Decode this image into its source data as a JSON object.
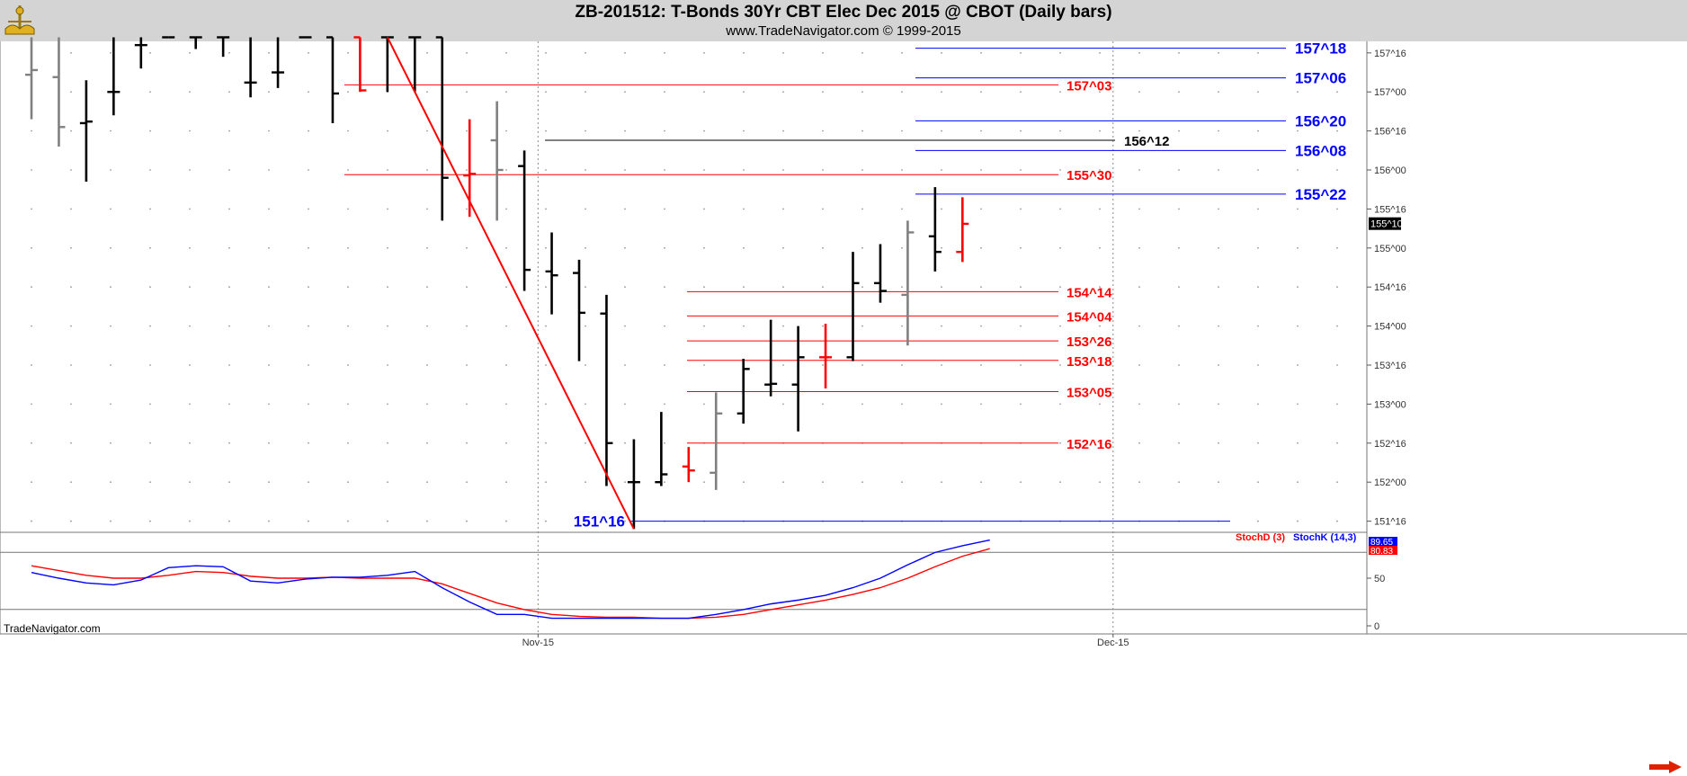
{
  "header": {
    "title": "ZB-201512:  T-Bonds 30Yr CBT Elec Dec 2015 @ CBOT  (Daily bars)",
    "subtitle": "www.TradeNavigator.com © 1999-2015"
  },
  "watermark": "TradeNavigator.com",
  "colors": {
    "up_bar": "#000000",
    "down_bar": "#ff0000",
    "inside_bar": "#808080",
    "red_level": "#ff0000",
    "blue_level": "#0000ff",
    "black_level": "#000000",
    "stoch_d": "#ff0000",
    "stoch_k": "#0000ff",
    "header_bg": "#d4d4d4"
  },
  "chart_data": [
    {
      "type": "bar",
      "subtype": "ohlc",
      "title": "ZB-201512:  T-Bonds 30Yr CBT Elec Dec 2015 @ CBOT  (Daily bars)",
      "x_tick_labels": [
        "Nov-15",
        "Dec-15"
      ],
      "x_tick_bar_positions": [
        18.5,
        39.5
      ],
      "y_tick_labels": [
        "157^16",
        "157^00",
        "156^16",
        "156^00",
        "155^16",
        "155^00",
        "154^16",
        "154^00",
        "153^16",
        "153^00",
        "152^16",
        "152^00",
        "151^16"
      ],
      "y_unit": "32nds",
      "ylim": [
        151.4,
        157.7
      ],
      "last_price_label": "155^10",
      "last_price": 155.3125,
      "bars": [
        {
          "o": 157.22,
          "h": 157.7,
          "l": 156.65,
          "c": 157.28,
          "color": "inside"
        },
        {
          "o": 157.19,
          "h": 157.7,
          "l": 156.3,
          "c": 156.55,
          "color": "inside"
        },
        {
          "o": 156.6,
          "h": 157.15,
          "l": 155.85,
          "c": 156.62,
          "color": "up"
        },
        {
          "o": 157.0,
          "h": 157.7,
          "l": 156.7,
          "c": 157.0,
          "color": "up"
        },
        {
          "o": 157.6,
          "h": 157.7,
          "l": 157.3,
          "c": 157.6,
          "color": "up"
        },
        {
          "o": 157.7,
          "h": 157.7,
          "l": 157.7,
          "c": 157.7,
          "color": "up"
        },
        {
          "o": 157.7,
          "h": 157.7,
          "l": 157.55,
          "c": 157.7,
          "color": "up"
        },
        {
          "o": 157.7,
          "h": 157.7,
          "l": 157.45,
          "c": 157.7,
          "color": "up"
        },
        {
          "o": 157.12,
          "h": 157.7,
          "l": 156.93,
          "c": 157.12,
          "color": "up"
        },
        {
          "o": 157.25,
          "h": 157.7,
          "l": 157.05,
          "c": 157.25,
          "color": "up"
        },
        {
          "o": 157.7,
          "h": 157.7,
          "l": 157.7,
          "c": 157.7,
          "color": "up"
        },
        {
          "o": 157.7,
          "h": 157.7,
          "l": 156.6,
          "c": 156.98,
          "color": "up"
        },
        {
          "o": 157.7,
          "h": 157.7,
          "l": 157.0,
          "c": 157.02,
          "color": "down"
        },
        {
          "o": 157.7,
          "h": 157.7,
          "l": 157.0,
          "c": 157.7,
          "color": "up"
        },
        {
          "o": 157.7,
          "h": 157.7,
          "l": 157.0,
          "c": 157.7,
          "color": "up"
        },
        {
          "o": 157.7,
          "h": 157.7,
          "l": 155.35,
          "c": 155.9,
          "color": "up"
        },
        {
          "o": 155.93,
          "h": 156.65,
          "l": 155.4,
          "c": 155.95,
          "color": "down"
        },
        {
          "o": 156.38,
          "h": 156.88,
          "l": 155.35,
          "c": 156.0,
          "color": "inside"
        },
        {
          "o": 156.05,
          "h": 156.25,
          "l": 154.45,
          "c": 154.72,
          "color": "up"
        },
        {
          "o": 154.7,
          "h": 155.2,
          "l": 154.15,
          "c": 154.65,
          "color": "up"
        },
        {
          "o": 154.68,
          "h": 154.85,
          "l": 153.55,
          "c": 154.17,
          "color": "up"
        },
        {
          "o": 154.16,
          "h": 154.4,
          "l": 151.95,
          "c": 152.5,
          "color": "up"
        },
        {
          "o": 152.0,
          "h": 152.55,
          "l": 151.4,
          "c": 152.0,
          "color": "up"
        },
        {
          "o": 152.0,
          "h": 152.9,
          "l": 151.95,
          "c": 152.1,
          "color": "up"
        },
        {
          "o": 152.2,
          "h": 152.45,
          "l": 152.0,
          "c": 152.15,
          "color": "down"
        },
        {
          "o": 152.12,
          "h": 153.15,
          "l": 151.9,
          "c": 152.88,
          "color": "inside"
        },
        {
          "o": 152.88,
          "h": 153.58,
          "l": 152.75,
          "c": 153.45,
          "color": "up"
        },
        {
          "o": 153.25,
          "h": 154.08,
          "l": 153.1,
          "c": 153.26,
          "color": "up"
        },
        {
          "o": 153.25,
          "h": 154.0,
          "l": 152.65,
          "c": 153.6,
          "color": "up"
        },
        {
          "o": 153.6,
          "h": 154.03,
          "l": 153.2,
          "c": 153.6,
          "color": "down"
        },
        {
          "o": 153.6,
          "h": 154.95,
          "l": 153.55,
          "c": 154.55,
          "color": "up"
        },
        {
          "o": 154.55,
          "h": 155.05,
          "l": 154.3,
          "c": 154.45,
          "color": "up"
        },
        {
          "o": 154.4,
          "h": 155.35,
          "l": 153.75,
          "c": 155.2,
          "color": "inside"
        },
        {
          "o": 155.15,
          "h": 155.78,
          "l": 154.7,
          "c": 154.95,
          "color": "up"
        },
        {
          "o": 154.95,
          "h": 155.65,
          "l": 154.82,
          "c": 155.31,
          "color": "down"
        }
      ],
      "levels": [
        {
          "label": "157^18",
          "value": 157.56,
          "color": "blue"
        },
        {
          "label": "157^06",
          "value": 157.18,
          "color": "blue"
        },
        {
          "label": "157^03",
          "value": 157.09,
          "color": "red"
        },
        {
          "label": "156^20",
          "value": 156.63,
          "color": "blue"
        },
        {
          "label": "156^12",
          "value": 156.38,
          "color": "black"
        },
        {
          "label": "156^08",
          "value": 156.25,
          "color": "blue"
        },
        {
          "label": "155^30",
          "value": 155.94,
          "color": "red"
        },
        {
          "label": "155^22",
          "value": 155.69,
          "color": "blue"
        },
        {
          "label": "154^14",
          "value": 154.44,
          "color": "red"
        },
        {
          "label": "154^04",
          "value": 154.13,
          "color": "red"
        },
        {
          "label": "153^26",
          "value": 153.81,
          "color": "red"
        },
        {
          "label": "153^18",
          "value": 153.56,
          "color": "red"
        },
        {
          "label": "153^05",
          "value": 153.16,
          "color": "red"
        },
        {
          "label": "152^16",
          "value": 152.5,
          "color": "red"
        },
        {
          "label": "151^16",
          "value": 151.5,
          "color": "blue"
        }
      ],
      "trendline": [
        {
          "bar": 13,
          "value": 157.7
        },
        {
          "bar": 22,
          "value": 151.4
        }
      ]
    },
    {
      "type": "line",
      "legend": [
        "StochD (3)",
        "StochK (14,3)"
      ],
      "y_tick_labels": [
        "50",
        "0"
      ],
      "ylim": [
        0,
        100
      ],
      "reference_levels": [
        80,
        20
      ],
      "last_value_labels": [
        "89.65",
        "80.83"
      ],
      "series": [
        {
          "name": "StochD (3)",
          "color": "#ff0000",
          "values": [
            63,
            58,
            53,
            50,
            50,
            53,
            57,
            56,
            52,
            50,
            50,
            51,
            50,
            50,
            50,
            44,
            34,
            24,
            17,
            12,
            10,
            9,
            9,
            8,
            8,
            9,
            12,
            17,
            22,
            27,
            33,
            40,
            50,
            62,
            73,
            81
          ]
        },
        {
          "name": "StochK (14,3)",
          "color": "#0000ff",
          "values": [
            56,
            50,
            45,
            43,
            48,
            61,
            63,
            62,
            47,
            45,
            49,
            51,
            51,
            53,
            57,
            40,
            25,
            12,
            12,
            8,
            8,
            8,
            8,
            8,
            8,
            12,
            17,
            23,
            27,
            32,
            40,
            50,
            64,
            77,
            84,
            90
          ]
        }
      ]
    }
  ]
}
